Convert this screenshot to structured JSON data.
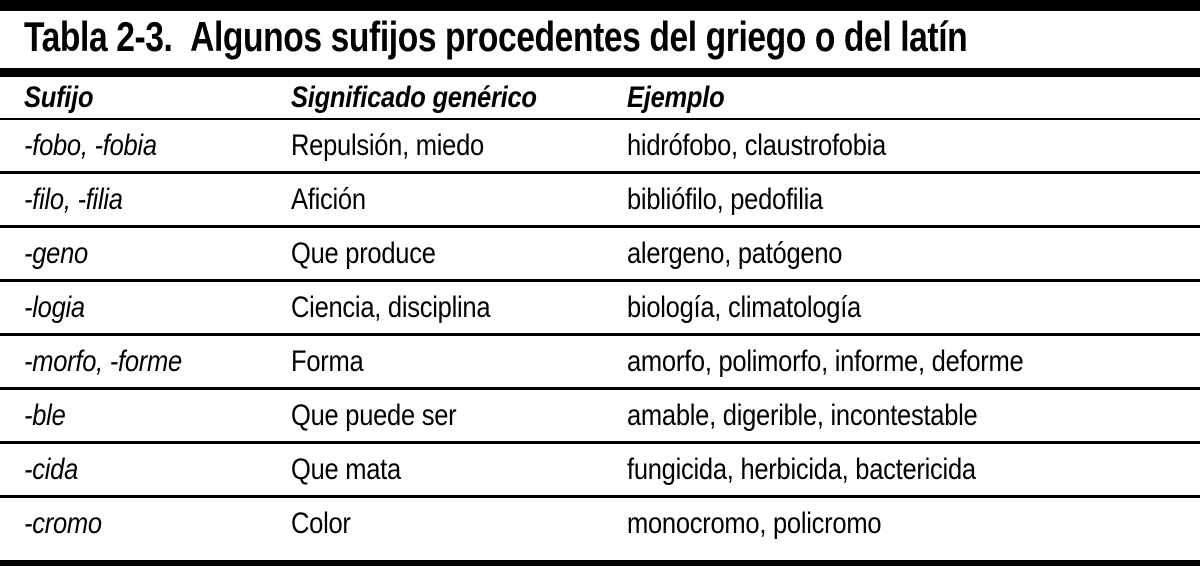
{
  "title": {
    "label": "Tabla 2-3.",
    "text": "Algunos sufijos procedentes del griego o del latín"
  },
  "columns": {
    "sufijo": "Sufijo",
    "significado": "Significado genérico",
    "ejemplo": "Ejemplo"
  },
  "rows": [
    {
      "sufijo": "-fobo, -fobia",
      "significado": "Repulsión, miedo",
      "ejemplo": "hidrófobo, claustrofobia"
    },
    {
      "sufijo": "-filo, -filia",
      "significado": "Afición",
      "ejemplo": "bibliófilo, pedofilia"
    },
    {
      "sufijo": "-geno",
      "significado": "Que produce",
      "ejemplo": "alergeno, patógeno"
    },
    {
      "sufijo": "-logia",
      "significado": "Ciencia, disciplina",
      "ejemplo": "biología, climatología"
    },
    {
      "sufijo": "-morfo, -forme",
      "significado": "Forma",
      "ejemplo": "amorfo, polimorfo, informe, deforme"
    },
    {
      "sufijo": "-ble",
      "significado": "Que puede ser",
      "ejemplo": "amable, digerible, incontestable"
    },
    {
      "sufijo": "-cida",
      "significado": "Que mata",
      "ejemplo": "fungicida, herbicida, bactericida"
    },
    {
      "sufijo": "-cromo",
      "significado": "Color",
      "ejemplo": "monocromo, policromo"
    }
  ],
  "colors": {
    "ink": "#000000",
    "background": "#ffffff"
  }
}
